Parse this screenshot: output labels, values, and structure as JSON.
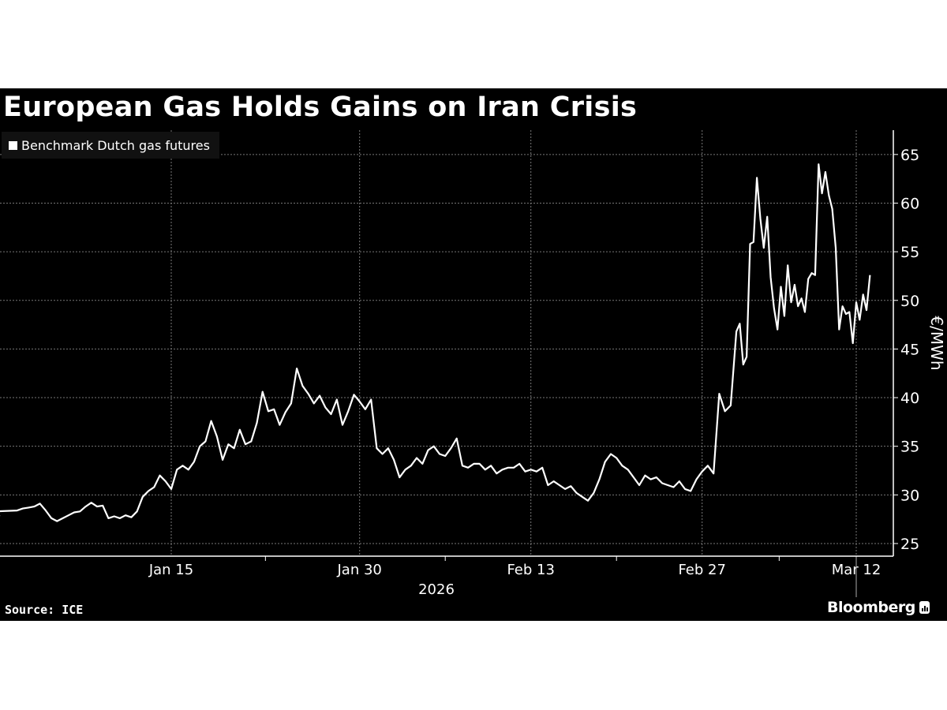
{
  "chart_data": {
    "type": "line",
    "title": "European Gas Holds Gains on Iran Crisis",
    "ylabel": "€/MWh",
    "xlabel": "2026",
    "source": "Source: ICE",
    "brand": "Bloomberg",
    "legend": {
      "position": "top-left"
    },
    "grid": true,
    "ylim": [
      23.7,
      67.5
    ],
    "y_ticks": [
      25,
      30,
      35,
      40,
      45,
      50,
      55,
      60,
      65
    ],
    "x_axis": "trading days",
    "x_ticks": [
      {
        "label": "Jan 15",
        "date": "2026-01-15"
      },
      {
        "label": "Jan 30",
        "date": "2026-01-30"
      },
      {
        "label": "Feb 13",
        "date": "2026-02-13"
      },
      {
        "label": "Feb 27",
        "date": "2026-02-27"
      },
      {
        "label": "Mar 12",
        "date": "2026-03-12"
      }
    ],
    "series": [
      {
        "name": "Benchmark Dutch gas futures",
        "color": "#ffffff",
        "points": [
          {
            "date": "2025-12-31",
            "values": [
              27.8,
              28.2,
              28.3
            ]
          },
          {
            "date": "2026-01-02",
            "values": [
              28.4,
              28.6,
              28.7
            ]
          },
          {
            "date": "2026-01-05",
            "values": [
              28.8,
              29.1,
              28.4
            ]
          },
          {
            "date": "2026-01-06",
            "values": [
              27.6,
              27.3,
              27.6
            ]
          },
          {
            "date": "2026-01-07",
            "values": [
              27.9,
              28.2,
              28.3
            ]
          },
          {
            "date": "2026-01-08",
            "values": [
              28.8,
              29.2,
              28.8
            ]
          },
          {
            "date": "2026-01-09",
            "values": [
              28.9,
              27.6,
              27.8
            ]
          },
          {
            "date": "2026-01-12",
            "values": [
              27.6,
              27.9,
              27.7
            ]
          },
          {
            "date": "2026-01-13",
            "values": [
              28.3,
              29.8,
              30.4
            ]
          },
          {
            "date": "2026-01-14",
            "values": [
              30.8,
              32.0,
              31.4
            ]
          },
          {
            "date": "2026-01-15",
            "values": [
              30.6,
              32.6,
              33.0
            ]
          },
          {
            "date": "2026-01-16",
            "values": [
              32.6,
              33.4,
              35.0
            ]
          },
          {
            "date": "2026-01-19",
            "values": [
              35.5,
              37.6,
              36.0
            ]
          },
          {
            "date": "2026-01-20",
            "values": [
              33.6,
              35.2,
              34.8
            ]
          },
          {
            "date": "2026-01-21",
            "values": [
              36.7,
              35.2,
              35.5
            ]
          },
          {
            "date": "2026-01-22",
            "values": [
              37.4,
              40.6,
              38.6
            ]
          },
          {
            "date": "2026-01-23",
            "values": [
              38.8,
              37.2,
              38.5
            ]
          },
          {
            "date": "2026-01-26",
            "values": [
              39.4,
              43.0,
              41.2
            ]
          },
          {
            "date": "2026-01-27",
            "values": [
              40.4,
              39.4,
              40.2
            ]
          },
          {
            "date": "2026-01-28",
            "values": [
              39.0,
              38.3,
              39.8
            ]
          },
          {
            "date": "2026-01-29",
            "values": [
              37.2,
              38.6,
              40.3
            ]
          },
          {
            "date": "2026-01-30",
            "values": [
              39.6,
              38.8,
              39.8
            ]
          },
          {
            "date": "2026-02-02",
            "values": [
              34.8,
              34.2,
              34.8
            ]
          },
          {
            "date": "2026-02-03",
            "values": [
              33.6,
              31.8,
              32.6
            ]
          },
          {
            "date": "2026-02-04",
            "values": [
              33.0,
              33.8,
              33.2
            ]
          },
          {
            "date": "2026-02-05",
            "values": [
              34.6,
              35.0,
              34.2
            ]
          },
          {
            "date": "2026-02-06",
            "values": [
              34.0,
              34.8,
              35.8
            ]
          },
          {
            "date": "2026-02-09",
            "values": [
              33.0,
              32.8,
              33.2
            ]
          },
          {
            "date": "2026-02-10",
            "values": [
              33.2,
              32.6,
              33.0
            ]
          },
          {
            "date": "2026-02-11",
            "values": [
              32.2,
              32.6,
              32.8
            ]
          },
          {
            "date": "2026-02-12",
            "values": [
              32.8,
              33.2,
              32.4
            ]
          },
          {
            "date": "2026-02-13",
            "values": [
              32.6,
              32.4,
              32.8
            ]
          },
          {
            "date": "2026-02-16",
            "values": [
              31.0,
              31.4,
              31.0
            ]
          },
          {
            "date": "2026-02-17",
            "values": [
              30.6,
              30.9,
              30.2
            ]
          },
          {
            "date": "2026-02-18",
            "values": [
              29.8,
              29.4,
              30.2
            ]
          },
          {
            "date": "2026-02-19",
            "values": [
              31.6,
              33.4,
              34.2
            ]
          },
          {
            "date": "2026-02-20",
            "values": [
              33.8,
              33.0,
              32.6
            ]
          },
          {
            "date": "2026-02-23",
            "values": [
              31.8,
              31.0,
              32.0
            ]
          },
          {
            "date": "2026-02-24",
            "values": [
              31.6,
              31.8,
              31.2
            ]
          },
          {
            "date": "2026-02-25",
            "values": [
              31.0,
              30.8,
              31.4
            ]
          },
          {
            "date": "2026-02-26",
            "values": [
              30.6,
              30.4,
              31.6
            ]
          },
          {
            "date": "2026-02-27",
            "values": [
              32.4,
              33.0,
              32.2
            ]
          },
          {
            "date": "2026-03-02",
            "values": [
              40.4,
              38.6,
              39.2
            ]
          },
          {
            "date": "2026-03-03",
            "values": [
              46.8,
              47.6,
              43.4,
              44.2,
              55.8
            ]
          },
          {
            "date": "2026-03-04",
            "values": [
              56.0,
              62.6,
              58.4,
              55.4,
              58.6
            ]
          },
          {
            "date": "2026-03-05",
            "values": [
              52.4,
              49.2,
              47.0,
              51.4,
              48.4
            ]
          },
          {
            "date": "2026-03-06",
            "values": [
              53.6,
              49.8,
              51.6,
              49.4,
              50.2
            ]
          },
          {
            "date": "2026-03-09",
            "values": [
              48.8,
              52.2,
              52.8,
              52.6,
              64.0
            ]
          },
          {
            "date": "2026-03-10",
            "values": [
              61.0,
              63.2,
              60.8,
              59.4,
              55.4
            ]
          },
          {
            "date": "2026-03-11",
            "values": [
              47.0,
              49.4,
              48.6,
              48.8,
              45.6
            ]
          },
          {
            "date": "2026-03-12",
            "values": [
              49.8,
              48.0,
              50.6,
              49.0,
              52.6
            ]
          }
        ]
      }
    ]
  }
}
